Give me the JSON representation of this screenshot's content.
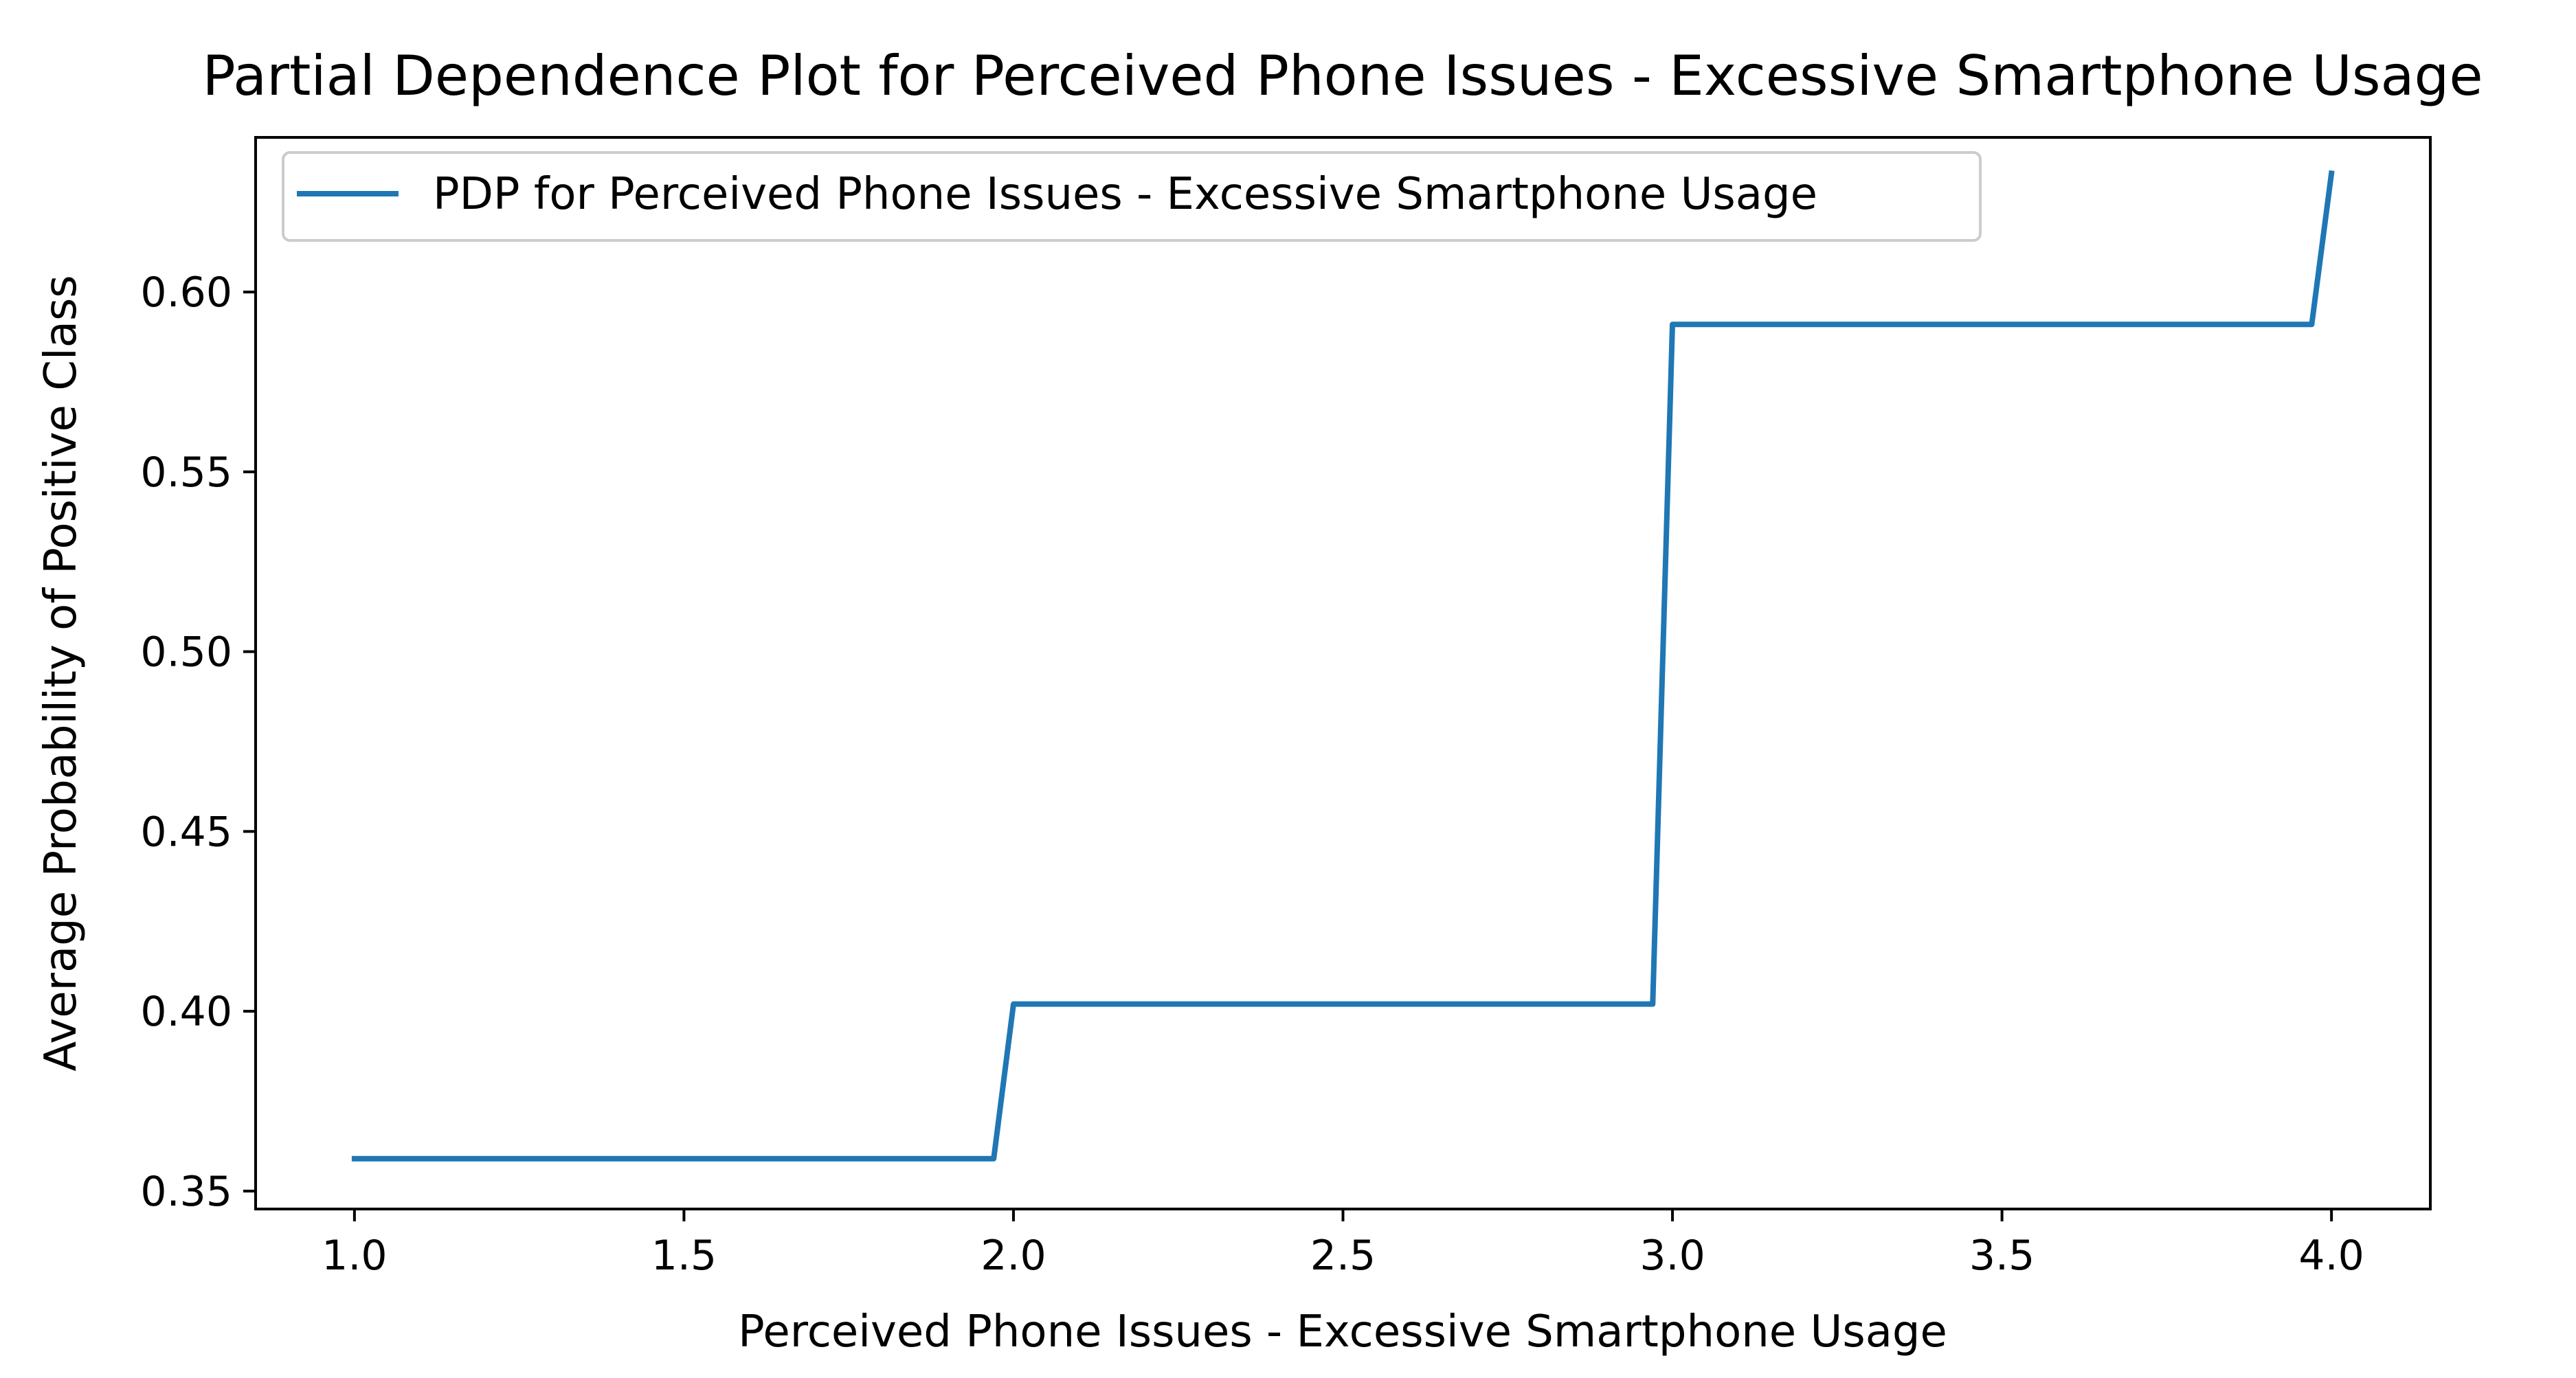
{
  "chart_data": {
    "type": "line",
    "title": "Partial Dependence Plot for Perceived Phone Issues - Excessive Smartphone Usage",
    "xlabel": "Perceived Phone Issues - Excessive Smartphone Usage",
    "ylabel": "Average Probability of Positive Class",
    "xlim": [
      0.85,
      4.15
    ],
    "ylim": [
      0.345,
      0.643
    ],
    "x_ticks": [
      "1.0",
      "1.5",
      "2.0",
      "2.5",
      "3.0",
      "3.5",
      "4.0"
    ],
    "y_ticks": [
      "0.35",
      "0.40",
      "0.45",
      "0.50",
      "0.55",
      "0.60"
    ],
    "legend_position": "top-left",
    "grid": false,
    "series": [
      {
        "name": "PDP for Perceived Phone Issues - Excessive Smartphone Usage",
        "color": "#1f77b4",
        "x": [
          1.0,
          1.97,
          2.0,
          2.97,
          3.0,
          3.97,
          4.0
        ],
        "y": [
          0.359,
          0.359,
          0.402,
          0.402,
          0.591,
          0.591,
          0.633
        ]
      }
    ]
  }
}
